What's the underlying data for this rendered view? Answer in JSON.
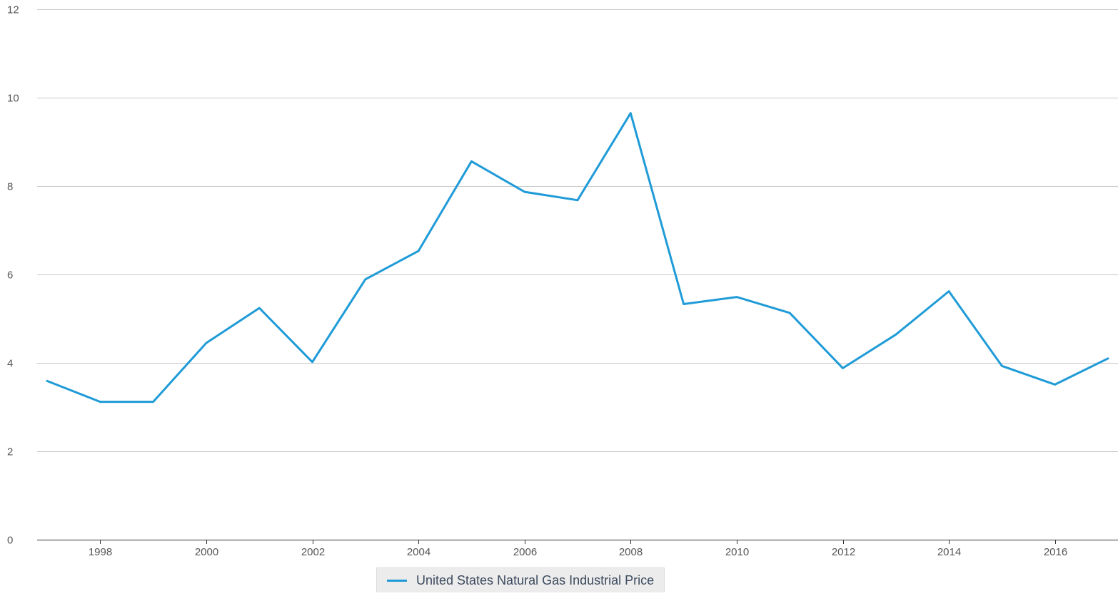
{
  "chart_data": {
    "type": "line",
    "title": "",
    "xlabel": "",
    "ylabel": "",
    "x": [
      1997,
      1998,
      1999,
      2000,
      2001,
      2002,
      2003,
      2004,
      2005,
      2006,
      2007,
      2008,
      2009,
      2010,
      2011,
      2012,
      2013,
      2014,
      2015,
      2016,
      2017
    ],
    "series": [
      {
        "name": "United States Natural Gas Industrial Price",
        "color": "#1f9bd7",
        "values": [
          3.59,
          3.12,
          3.12,
          4.45,
          5.24,
          4.02,
          5.89,
          6.53,
          8.56,
          7.87,
          7.68,
          9.65,
          5.33,
          5.49,
          5.13,
          3.88,
          4.64,
          5.62,
          3.93,
          3.51,
          4.1
        ]
      }
    ],
    "ylim": [
      0,
      12
    ],
    "yticks": [
      0,
      2,
      4,
      6,
      8,
      10,
      12
    ],
    "xlim": [
      1997,
      2017
    ],
    "xticks": [
      1998,
      2000,
      2002,
      2004,
      2006,
      2008,
      2010,
      2012,
      2014,
      2016
    ],
    "grid": true,
    "legend_position": "bottom-center"
  }
}
